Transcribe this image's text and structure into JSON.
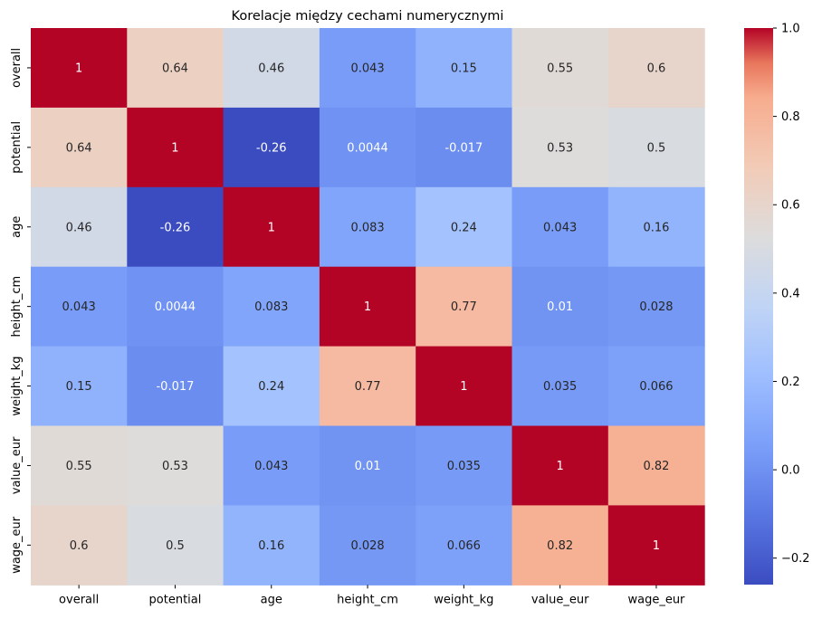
{
  "chart_data": {
    "type": "heatmap",
    "title": "Korelacje między cechami numerycznymi",
    "xlabel": "",
    "ylabel": "",
    "x_categories": [
      "overall",
      "potential",
      "age",
      "height_cm",
      "weight_kg",
      "value_eur",
      "wage_eur"
    ],
    "y_categories": [
      "overall",
      "potential",
      "age",
      "height_cm",
      "weight_kg",
      "value_eur",
      "wage_eur"
    ],
    "values": [
      [
        1,
        0.64,
        0.46,
        0.043,
        0.15,
        0.55,
        0.6
      ],
      [
        0.64,
        1,
        -0.26,
        0.0044,
        -0.017,
        0.53,
        0.5
      ],
      [
        0.46,
        -0.26,
        1,
        0.083,
        0.24,
        0.043,
        0.16
      ],
      [
        0.043,
        0.0044,
        0.083,
        1,
        0.77,
        0.01,
        0.028
      ],
      [
        0.15,
        -0.017,
        0.24,
        0.77,
        1,
        0.035,
        0.066
      ],
      [
        0.55,
        0.53,
        0.043,
        0.01,
        0.035,
        1,
        0.82
      ],
      [
        0.6,
        0.5,
        0.16,
        0.028,
        0.066,
        0.82,
        1
      ]
    ],
    "annotations": [
      [
        "1",
        "0.64",
        "0.46",
        "0.043",
        "0.15",
        "0.55",
        "0.6"
      ],
      [
        "0.64",
        "1",
        "-0.26",
        "0.0044",
        "-0.017",
        "0.53",
        "0.5"
      ],
      [
        "0.46",
        "-0.26",
        "1",
        "0.083",
        "0.24",
        "0.043",
        "0.16"
      ],
      [
        "0.043",
        "0.0044",
        "0.083",
        "1",
        "0.77",
        "0.01",
        "0.028"
      ],
      [
        "0.15",
        "-0.017",
        "0.24",
        "0.77",
        "1",
        "0.035",
        "0.066"
      ],
      [
        "0.55",
        "0.53",
        "0.043",
        "0.01",
        "0.035",
        "1",
        "0.82"
      ],
      [
        "0.6",
        "0.5",
        "0.16",
        "0.028",
        "0.066",
        "0.82",
        "1"
      ]
    ],
    "colormap": "coolwarm",
    "vmin": -0.26,
    "vmax": 1,
    "colorbar_ticks": [
      1.0,
      0.8,
      0.6,
      0.4,
      0.2,
      0.0,
      -0.2
    ],
    "colorbar_tick_labels": [
      "1.0",
      "0.8",
      "0.6",
      "0.4",
      "0.2",
      "0.0",
      "−0.2"
    ],
    "grid": false,
    "colors": {
      "low": "#3b4cc0",
      "mid": "#dddddd",
      "high": "#b40426"
    }
  }
}
